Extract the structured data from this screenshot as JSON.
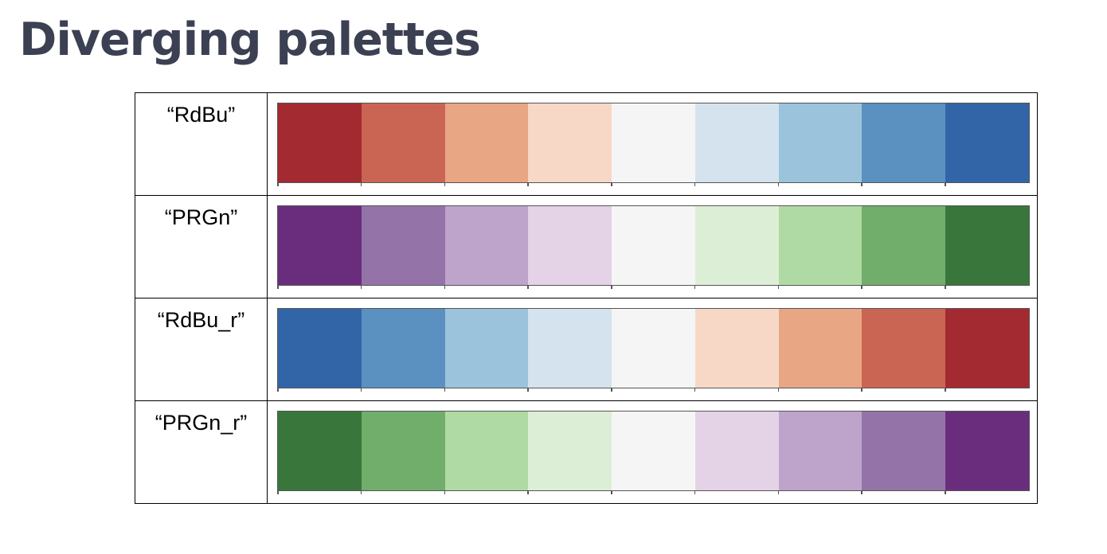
{
  "title": "Diverging palettes",
  "palettes": [
    {
      "name": "“RdBu”",
      "colors": [
        "#a32a31",
        "#cb6553",
        "#e8a684",
        "#f7d8c6",
        "#f5f5f5",
        "#d4e3ee",
        "#9cc3dc",
        "#5a91c0",
        "#3265a7"
      ]
    },
    {
      "name": "“PRGn”",
      "colors": [
        "#6a2d7d",
        "#9474a8",
        "#bea3cb",
        "#e4d2e6",
        "#f5f5f5",
        "#ddeed6",
        "#b0daa4",
        "#71ad6b",
        "#39763c"
      ]
    },
    {
      "name": "“RdBu_r”",
      "colors": [
        "#3265a7",
        "#5a91c0",
        "#9cc3dc",
        "#d4e3ee",
        "#f5f5f5",
        "#f7d8c6",
        "#e8a684",
        "#cb6553",
        "#a32a31"
      ]
    },
    {
      "name": "“PRGn_r”",
      "colors": [
        "#39763c",
        "#71ad6b",
        "#b0daa4",
        "#ddeed6",
        "#f5f5f5",
        "#e4d2e6",
        "#bea3cb",
        "#9474a8",
        "#6a2d7d"
      ]
    }
  ]
}
